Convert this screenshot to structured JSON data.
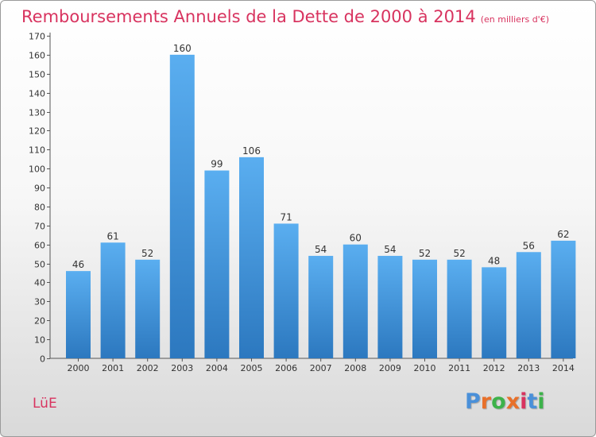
{
  "title": "Remboursements Annuels de la Dette de 2000 à 2014",
  "unit": "(en milliers d'€)",
  "commune": "LüE",
  "logo": {
    "text": "Proxiti",
    "colors": [
      "#4a90d9",
      "#e8702a",
      "#3db24a",
      "#e8702a",
      "#d8335f",
      "#4a90d9",
      "#3db24a"
    ]
  },
  "chart_data": {
    "type": "bar",
    "categories": [
      "2000",
      "2001",
      "2002",
      "2003",
      "2004",
      "2005",
      "2006",
      "2007",
      "2008",
      "2009",
      "2010",
      "2011",
      "2012",
      "2013",
      "2014"
    ],
    "values": [
      46,
      61,
      52,
      160,
      99,
      106,
      71,
      54,
      60,
      54,
      52,
      52,
      48,
      56,
      62
    ],
    "title": "Remboursements Annuels de la Dette de 2000 à 2014",
    "xlabel": "",
    "ylabel": "",
    "ylim": [
      0,
      170
    ],
    "ytick_step": 10,
    "grid": false,
    "bar_color_top": "#5aaef0",
    "bar_color_bottom": "#2c78bf",
    "label_color": "#333333"
  }
}
